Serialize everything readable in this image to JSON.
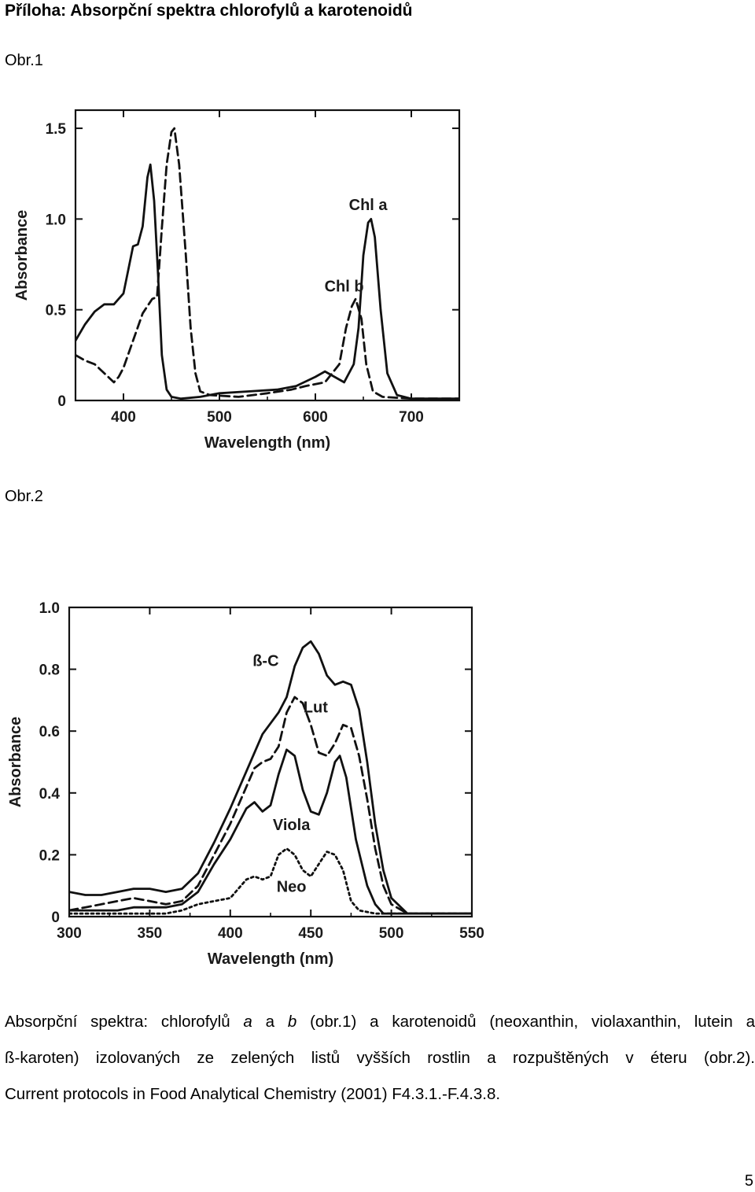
{
  "heading": "Příloha: Absorpční spektra chlorofylů a karotenoidů",
  "fig1_label": "Obr.1",
  "fig2_label": "Obr.2",
  "chart_data": [
    {
      "type": "line",
      "xlabel": "Wavelength (nm)",
      "ylabel": "Absorbance",
      "xlim": [
        350,
        750
      ],
      "ylim": [
        0,
        1.6
      ],
      "xticks": [
        "400",
        "500",
        "600",
        "700"
      ],
      "yticks": [
        "0",
        "0.5",
        "1.0",
        "1.5"
      ],
      "series": [
        {
          "name": "Chl a",
          "style": "solid",
          "points": [
            [
              350,
              0.33
            ],
            [
              360,
              0.42
            ],
            [
              370,
              0.49
            ],
            [
              380,
              0.53
            ],
            [
              390,
              0.53
            ],
            [
              400,
              0.59
            ],
            [
              405,
              0.72
            ],
            [
              410,
              0.85
            ],
            [
              415,
              0.86
            ],
            [
              420,
              0.96
            ],
            [
              425,
              1.23
            ],
            [
              428,
              1.3
            ],
            [
              432,
              1.1
            ],
            [
              436,
              0.7
            ],
            [
              440,
              0.25
            ],
            [
              445,
              0.06
            ],
            [
              450,
              0.02
            ],
            [
              460,
              0.01
            ],
            [
              480,
              0.02
            ],
            [
              500,
              0.04
            ],
            [
              530,
              0.05
            ],
            [
              560,
              0.06
            ],
            [
              580,
              0.08
            ],
            [
              600,
              0.13
            ],
            [
              610,
              0.16
            ],
            [
              620,
              0.13
            ],
            [
              630,
              0.1
            ],
            [
              640,
              0.2
            ],
            [
              645,
              0.4
            ],
            [
              650,
              0.8
            ],
            [
              655,
              0.98
            ],
            [
              658,
              1.0
            ],
            [
              662,
              0.9
            ],
            [
              668,
              0.5
            ],
            [
              675,
              0.15
            ],
            [
              685,
              0.03
            ],
            [
              700,
              0.01
            ],
            [
              750,
              0.01
            ]
          ],
          "label": "Chl a",
          "label_at": [
            655,
            1.05
          ]
        },
        {
          "name": "Chl b",
          "style": "dashed",
          "points": [
            [
              350,
              0.25
            ],
            [
              360,
              0.22
            ],
            [
              370,
              0.2
            ],
            [
              380,
              0.15
            ],
            [
              390,
              0.1
            ],
            [
              395,
              0.13
            ],
            [
              400,
              0.18
            ],
            [
              410,
              0.33
            ],
            [
              420,
              0.48
            ],
            [
              430,
              0.56
            ],
            [
              435,
              0.57
            ],
            [
              440,
              0.95
            ],
            [
              445,
              1.3
            ],
            [
              450,
              1.48
            ],
            [
              453,
              1.5
            ],
            [
              458,
              1.3
            ],
            [
              465,
              0.8
            ],
            [
              470,
              0.4
            ],
            [
              475,
              0.15
            ],
            [
              480,
              0.05
            ],
            [
              490,
              0.03
            ],
            [
              520,
              0.02
            ],
            [
              550,
              0.04
            ],
            [
              575,
              0.06
            ],
            [
              590,
              0.08
            ],
            [
              610,
              0.1
            ],
            [
              625,
              0.2
            ],
            [
              632,
              0.4
            ],
            [
              638,
              0.52
            ],
            [
              642,
              0.56
            ],
            [
              648,
              0.45
            ],
            [
              653,
              0.2
            ],
            [
              660,
              0.05
            ],
            [
              670,
              0.02
            ],
            [
              700,
              0.01
            ],
            [
              750,
              0.01
            ]
          ],
          "label": "Chl b",
          "label_at": [
            630,
            0.6
          ]
        }
      ]
    },
    {
      "type": "line",
      "xlabel": "Wavelength (nm)",
      "ylabel": "Absorbance",
      "xlim": [
        300,
        550
      ],
      "ylim": [
        0,
        1.0
      ],
      "xticks": [
        "300",
        "350",
        "400",
        "450",
        "500",
        "550"
      ],
      "yticks": [
        "0",
        "0.2",
        "0.4",
        "0.6",
        "0.8",
        "1.0"
      ],
      "series": [
        {
          "name": "β-C",
          "style": "solid",
          "points": [
            [
              300,
              0.08
            ],
            [
              310,
              0.07
            ],
            [
              320,
              0.07
            ],
            [
              330,
              0.08
            ],
            [
              340,
              0.09
            ],
            [
              350,
              0.09
            ],
            [
              360,
              0.08
            ],
            [
              370,
              0.09
            ],
            [
              380,
              0.14
            ],
            [
              390,
              0.24
            ],
            [
              400,
              0.35
            ],
            [
              410,
              0.47
            ],
            [
              420,
              0.59
            ],
            [
              430,
              0.66
            ],
            [
              435,
              0.71
            ],
            [
              440,
              0.81
            ],
            [
              445,
              0.87
            ],
            [
              450,
              0.89
            ],
            [
              455,
              0.85
            ],
            [
              460,
              0.78
            ],
            [
              465,
              0.75
            ],
            [
              470,
              0.76
            ],
            [
              475,
              0.75
            ],
            [
              480,
              0.67
            ],
            [
              485,
              0.5
            ],
            [
              490,
              0.3
            ],
            [
              495,
              0.15
            ],
            [
              500,
              0.06
            ],
            [
              510,
              0.01
            ],
            [
              550,
              0.01
            ]
          ],
          "label": "ß-C",
          "label_at": [
            422,
            0.81
          ]
        },
        {
          "name": "Lut",
          "style": "dashed",
          "points": [
            [
              300,
              0.02
            ],
            [
              310,
              0.03
            ],
            [
              320,
              0.04
            ],
            [
              330,
              0.05
            ],
            [
              340,
              0.06
            ],
            [
              350,
              0.05
            ],
            [
              360,
              0.04
            ],
            [
              370,
              0.05
            ],
            [
              380,
              0.1
            ],
            [
              390,
              0.2
            ],
            [
              400,
              0.3
            ],
            [
              410,
              0.42
            ],
            [
              415,
              0.48
            ],
            [
              420,
              0.5
            ],
            [
              425,
              0.51
            ],
            [
              430,
              0.55
            ],
            [
              435,
              0.66
            ],
            [
              440,
              0.71
            ],
            [
              445,
              0.69
            ],
            [
              450,
              0.62
            ],
            [
              455,
              0.53
            ],
            [
              460,
              0.52
            ],
            [
              465,
              0.56
            ],
            [
              470,
              0.62
            ],
            [
              475,
              0.61
            ],
            [
              480,
              0.52
            ],
            [
              485,
              0.38
            ],
            [
              490,
              0.22
            ],
            [
              495,
              0.1
            ],
            [
              500,
              0.04
            ],
            [
              510,
              0.01
            ],
            [
              550,
              0.01
            ]
          ],
          "label": "Lut",
          "label_at": [
            453,
            0.66
          ]
        },
        {
          "name": "Viola",
          "style": "solid",
          "points": [
            [
              300,
              0.02
            ],
            [
              310,
              0.02
            ],
            [
              320,
              0.02
            ],
            [
              330,
              0.02
            ],
            [
              340,
              0.03
            ],
            [
              350,
              0.03
            ],
            [
              360,
              0.03
            ],
            [
              370,
              0.04
            ],
            [
              380,
              0.08
            ],
            [
              390,
              0.17
            ],
            [
              400,
              0.25
            ],
            [
              405,
              0.3
            ],
            [
              410,
              0.35
            ],
            [
              415,
              0.37
            ],
            [
              420,
              0.34
            ],
            [
              425,
              0.36
            ],
            [
              430,
              0.46
            ],
            [
              435,
              0.54
            ],
            [
              440,
              0.52
            ],
            [
              445,
              0.41
            ],
            [
              450,
              0.34
            ],
            [
              455,
              0.33
            ],
            [
              460,
              0.4
            ],
            [
              465,
              0.5
            ],
            [
              468,
              0.52
            ],
            [
              472,
              0.45
            ],
            [
              478,
              0.25
            ],
            [
              485,
              0.1
            ],
            [
              490,
              0.04
            ],
            [
              495,
              0.01
            ],
            [
              550,
              0.01
            ]
          ],
          "label": "Viola",
          "label_at": [
            438,
            0.28
          ]
        },
        {
          "name": "Neo",
          "style": "dotted",
          "points": [
            [
              300,
              0.01
            ],
            [
              310,
              0.01
            ],
            [
              320,
              0.01
            ],
            [
              330,
              0.01
            ],
            [
              340,
              0.01
            ],
            [
              350,
              0.01
            ],
            [
              360,
              0.01
            ],
            [
              370,
              0.02
            ],
            [
              380,
              0.04
            ],
            [
              390,
              0.05
            ],
            [
              400,
              0.06
            ],
            [
              410,
              0.12
            ],
            [
              415,
              0.13
            ],
            [
              420,
              0.12
            ],
            [
              425,
              0.13
            ],
            [
              430,
              0.2
            ],
            [
              435,
              0.22
            ],
            [
              440,
              0.2
            ],
            [
              445,
              0.15
            ],
            [
              450,
              0.13
            ],
            [
              455,
              0.17
            ],
            [
              460,
              0.21
            ],
            [
              465,
              0.2
            ],
            [
              470,
              0.15
            ],
            [
              475,
              0.05
            ],
            [
              480,
              0.02
            ],
            [
              490,
              0.01
            ],
            [
              550,
              0.01
            ]
          ],
          "label": "Neo",
          "label_at": [
            438,
            0.08
          ]
        }
      ]
    }
  ],
  "caption": {
    "line1_parts": [
      "Absorpční spektra: chlorofylů ",
      "a",
      " a ",
      "b",
      " (obr.1) a karotenoidů (neoxanthin, violaxanthin, lutein a"
    ],
    "line2": "ß-karoten) izolovaných ze zelených listů vyšších rostlin a rozpuštěných v éteru (obr.2).",
    "line3": "Current protocols in Food Analytical Chemistry (2001) F4.3.1.-F.4.3.8."
  },
  "page_number": "5"
}
